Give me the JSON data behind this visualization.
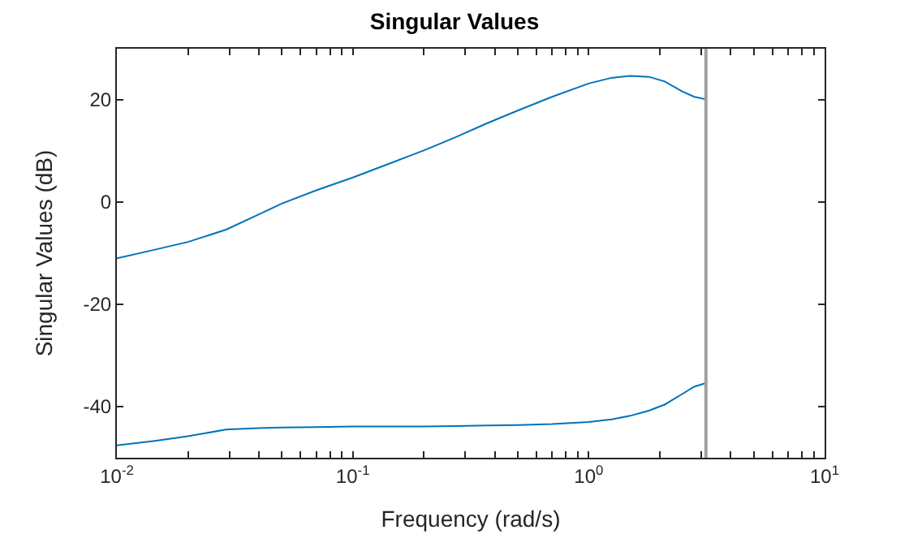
{
  "chart_data": {
    "type": "line",
    "title": "Singular Values",
    "xlabel": "Frequency (rad/s)",
    "ylabel": "Singular Values (dB)",
    "log": "x",
    "x": [
      0.01,
      0.0145,
      0.02,
      0.029,
      0.04,
      0.05,
      0.07,
      0.1,
      0.15,
      0.2,
      0.27,
      0.37,
      0.5,
      0.7,
      1.0,
      1.25,
      1.5,
      1.8,
      2.1,
      2.5,
      2.8,
      3.14
    ],
    "series": [
      {
        "color": "#0072bd",
        "values": [
          -11,
          -9.3,
          -7.8,
          -5.4,
          -2.4,
          -0.3,
          2.3,
          4.8,
          7.9,
          10.1,
          12.6,
          15.4,
          17.9,
          20.6,
          23.2,
          24.3,
          24.7,
          24.5,
          23.6,
          21.6,
          20.6,
          20.1
        ]
      },
      {
        "color": "#0072bd",
        "values": [
          -47.6,
          -46.7,
          -45.8,
          -44.5,
          -44.2,
          -44.1,
          -44.0,
          -43.9,
          -43.9,
          -43.9,
          -43.8,
          -43.7,
          -43.6,
          -43.4,
          -43.0,
          -42.5,
          -41.8,
          -40.8,
          -39.6,
          -37.5,
          -36.1,
          -35.4
        ]
      }
    ],
    "ref_lines": [
      {
        "axis": "x",
        "value": 3.14,
        "color": "#a0a0a0"
      }
    ],
    "xlim": [
      0.01,
      10
    ],
    "ylim": [
      -50,
      30
    ],
    "xticks": [
      {
        "value": 0.01,
        "label": "10$^{-2}$"
      },
      {
        "value": 0.02,
        "label": null
      },
      {
        "value": 0.03,
        "label": null
      },
      {
        "value": 0.04,
        "label": null
      },
      {
        "value": 0.05,
        "label": null
      },
      {
        "value": 0.06,
        "label": null
      },
      {
        "value": 0.07,
        "label": null
      },
      {
        "value": 0.08,
        "label": null
      },
      {
        "value": 0.09,
        "label": null
      },
      {
        "value": 0.1,
        "label": "10$^{-1}$"
      },
      {
        "value": 0.2,
        "label": null
      },
      {
        "value": 0.3,
        "label": null
      },
      {
        "value": 0.4,
        "label": null
      },
      {
        "value": 0.5,
        "label": null
      },
      {
        "value": 0.6,
        "label": null
      },
      {
        "value": 0.7,
        "label": null
      },
      {
        "value": 0.8,
        "label": null
      },
      {
        "value": 0.9,
        "label": null
      },
      {
        "value": 1,
        "label": "10$^{0}$"
      },
      {
        "value": 2,
        "label": null
      },
      {
        "value": 3,
        "label": null
      },
      {
        "value": 4,
        "label": null
      },
      {
        "value": 5,
        "label": null
      },
      {
        "value": 6,
        "label": null
      },
      {
        "value": 7,
        "label": null
      },
      {
        "value": 8,
        "label": null
      },
      {
        "value": 9,
        "label": null
      },
      {
        "value": 10,
        "label": "10$^{1}$"
      }
    ],
    "yticks": [
      -40,
      -20,
      0,
      20
    ],
    "marker": "none",
    "line_style": "solid"
  }
}
